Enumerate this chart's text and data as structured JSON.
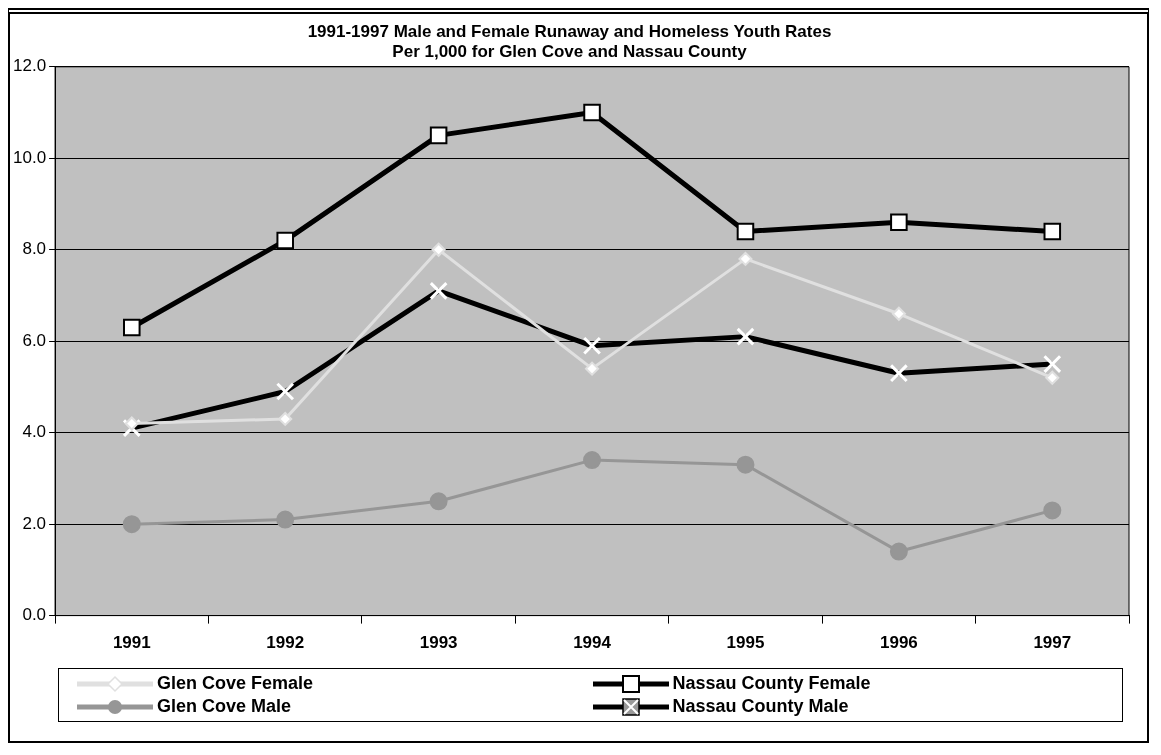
{
  "chart_data": {
    "type": "line",
    "title": "1991-1997 Male and Female Runaway and Homeless Youth Rates\nPer 1,000 for Glen Cove and Nassau County",
    "categories": [
      "1991",
      "1992",
      "1993",
      "1994",
      "1995",
      "1996",
      "1997"
    ],
    "series": [
      {
        "name": "Glen Cove Female",
        "color": "#e0e0e0",
        "marker": "diamond",
        "values": [
          4.2,
          4.3,
          8.0,
          5.4,
          7.8,
          6.6,
          5.2
        ]
      },
      {
        "name": "Nassau County Female",
        "color": "#000000",
        "marker": "square",
        "values": [
          6.3,
          8.2,
          10.5,
          11.0,
          8.4,
          8.6,
          8.4
        ]
      },
      {
        "name": "Glen Cove Male",
        "color": "#969696",
        "marker": "circle",
        "values": [
          2.0,
          2.1,
          2.5,
          3.4,
          3.3,
          1.4,
          2.3
        ]
      },
      {
        "name": "Nassau County Male",
        "color": "#000000",
        "marker": "cross",
        "values": [
          4.1,
          4.9,
          7.1,
          5.9,
          6.1,
          5.3,
          5.5
        ]
      }
    ],
    "ylim": [
      0,
      12
    ],
    "yticks": [
      {
        "value": 0,
        "label": "0.0"
      },
      {
        "value": 2,
        "label": "2.0"
      },
      {
        "value": 4,
        "label": "4.0"
      },
      {
        "value": 6,
        "label": "6.0"
      },
      {
        "value": 8,
        "label": "8.0"
      },
      {
        "value": 10,
        "label": "10.0"
      },
      {
        "value": 12,
        "label": "12.0"
      }
    ],
    "grid": "y",
    "legend": "bottom"
  }
}
